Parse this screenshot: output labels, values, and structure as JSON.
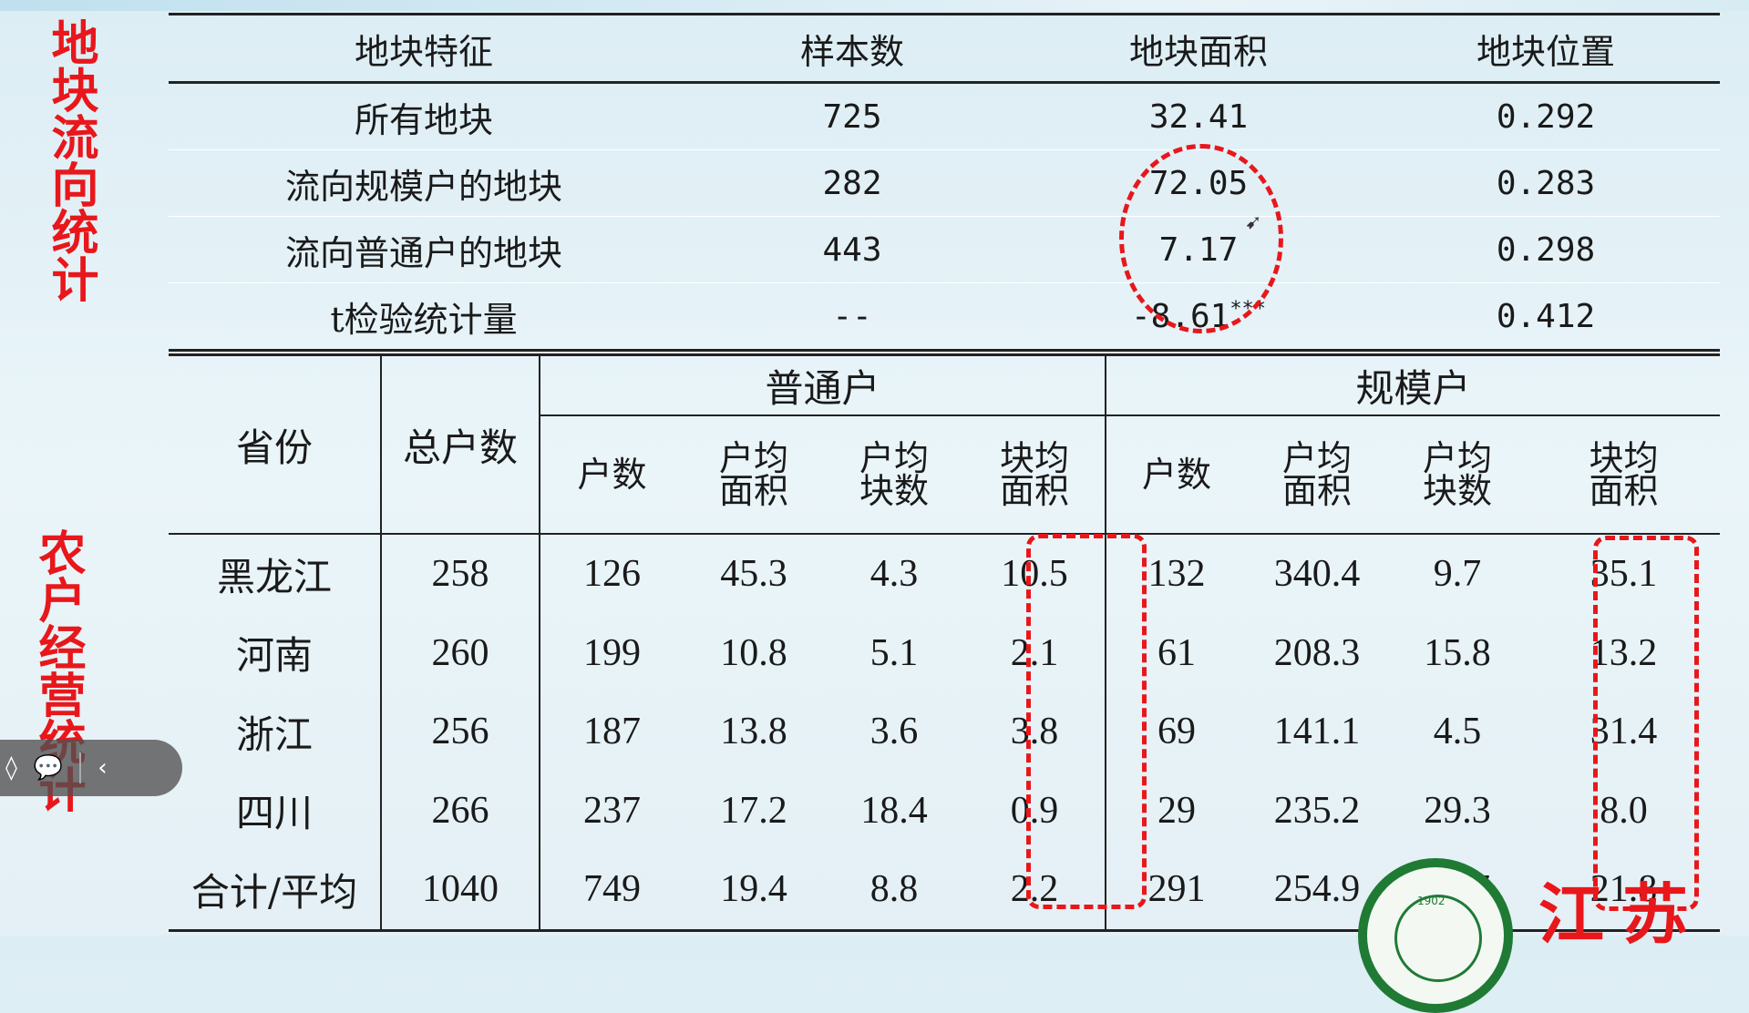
{
  "side_labels": {
    "top": "地块流向统计",
    "bottom": "农户经营统计"
  },
  "table1": {
    "headers": [
      "地块特征",
      "样本数",
      "地块面积",
      "地块位置"
    ],
    "rows": [
      [
        "所有地块",
        "725",
        "32.41",
        "0.292"
      ],
      [
        "流向规模户的地块",
        "282",
        "72.05",
        "0.283"
      ],
      [
        "流向普通户的地块",
        "443",
        "7.17",
        "0.298"
      ],
      [
        "t检验统计量",
        "--",
        "-8.61",
        "0.412"
      ]
    ],
    "significance": "***"
  },
  "table2": {
    "col_province": "省份",
    "col_total": "总户数",
    "group_ordinary": "普通户",
    "group_large": "规模户",
    "sub_headers": [
      "户数",
      "户均面积",
      "户均块数",
      "块均面积",
      "户数",
      "户均面积",
      "户均块数",
      "块均面积"
    ],
    "rows": [
      [
        "黑龙江",
        "258",
        "126",
        "45.3",
        "4.3",
        "10.5",
        "132",
        "340.4",
        "9.7",
        "35.1"
      ],
      [
        "河南",
        "260",
        "199",
        "10.8",
        "5.1",
        "2.1",
        "61",
        "208.3",
        "15.8",
        "13.2"
      ],
      [
        "浙江",
        "256",
        "187",
        "13.8",
        "3.6",
        "3.8",
        "69",
        "141.1",
        "4.5",
        "31.4"
      ],
      [
        "四川",
        "266",
        "237",
        "17.2",
        "18.4",
        "0.9",
        "29",
        "235.2",
        "29.3",
        "8.0"
      ],
      [
        "合计/平均",
        "1040",
        "749",
        "19.4",
        "8.8",
        "2.2",
        "291",
        "254.9",
        "11.7",
        "21.8"
      ]
    ]
  },
  "logo": {
    "year": "1902"
  },
  "brand_text": "江苏",
  "colors": {
    "highlight": "#e8171b",
    "text": "#1a1a1a",
    "logo_green": "#1f7a34"
  }
}
